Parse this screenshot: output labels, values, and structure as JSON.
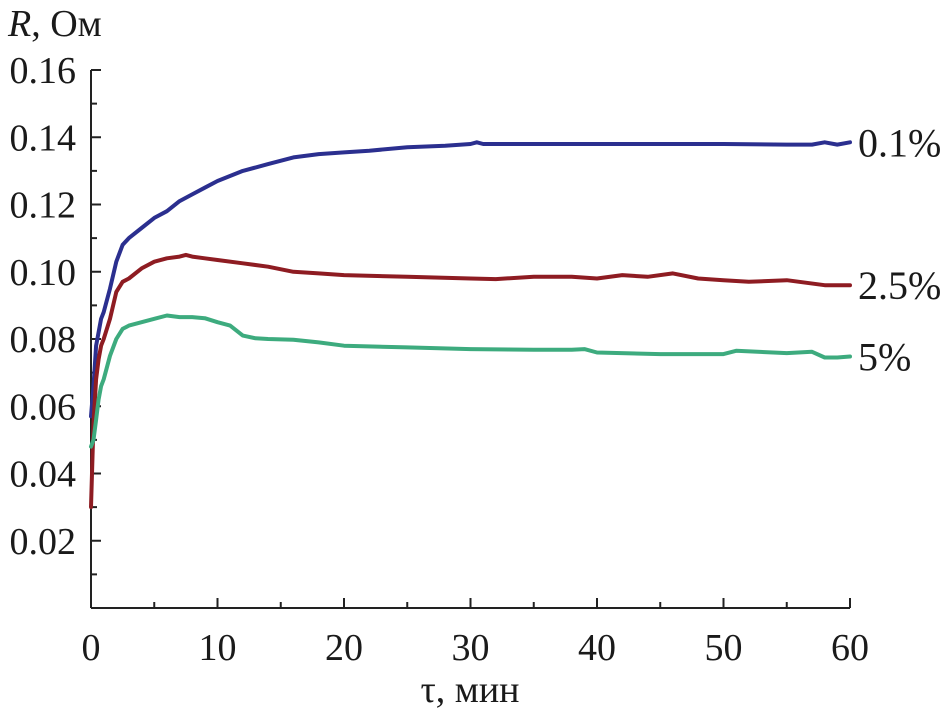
{
  "chart_data": {
    "type": "line",
    "title": "",
    "ylabel_var": "R",
    "ylabel_unit": ", Ом",
    "xlabel": "τ, мин",
    "xlim": [
      0,
      60
    ],
    "ylim": [
      0,
      0.16
    ],
    "x_ticks": [
      0,
      10,
      20,
      30,
      40,
      50,
      60
    ],
    "x_tick_labels": [
      "0",
      "10",
      "20",
      "30",
      "40",
      "50",
      "60"
    ],
    "y_ticks": [
      0.02,
      0.04,
      0.06,
      0.08,
      0.1,
      0.12,
      0.14,
      0.16
    ],
    "y_tick_labels": [
      "0.02",
      "0.04",
      "0.06",
      "0.08",
      "0.10",
      "0.12",
      "0.14",
      "0.16"
    ],
    "grid": false,
    "series": [
      {
        "name": "0.1%",
        "color": "#2b2f8f",
        "x": [
          0,
          0.2,
          0.4,
          0.6,
          0.8,
          1.0,
          1.5,
          2.0,
          2.5,
          3,
          4,
          5,
          6,
          7,
          8,
          9,
          10,
          12,
          14,
          16,
          18,
          20,
          22,
          25,
          28,
          30,
          30.5,
          31,
          32,
          35,
          40,
          45,
          50,
          55,
          57,
          58,
          59,
          60
        ],
        "y": [
          0.057,
          0.066,
          0.078,
          0.082,
          0.086,
          0.088,
          0.095,
          0.103,
          0.108,
          0.11,
          0.113,
          0.116,
          0.118,
          0.121,
          0.123,
          0.125,
          0.127,
          0.13,
          0.132,
          0.134,
          0.135,
          0.1355,
          0.136,
          0.137,
          0.1375,
          0.138,
          0.1385,
          0.138,
          0.138,
          0.138,
          0.138,
          0.138,
          0.138,
          0.1378,
          0.1378,
          0.1385,
          0.1378,
          0.1385
        ]
      },
      {
        "name": "2.5%",
        "color": "#8e1c22",
        "x": [
          0,
          0.2,
          0.4,
          0.6,
          0.8,
          1.0,
          1.5,
          2.0,
          2.5,
          3,
          4,
          5,
          6,
          7,
          7.5,
          8,
          9,
          10,
          12,
          14,
          16,
          18,
          20,
          25,
          30,
          32,
          35,
          38,
          40,
          42,
          44,
          46,
          48,
          50,
          52,
          55,
          58,
          60
        ],
        "y": [
          0.03,
          0.055,
          0.068,
          0.074,
          0.078,
          0.08,
          0.086,
          0.094,
          0.097,
          0.098,
          0.101,
          0.103,
          0.104,
          0.1045,
          0.105,
          0.1045,
          0.104,
          0.1035,
          0.1025,
          0.1015,
          0.1,
          0.0995,
          0.099,
          0.0985,
          0.098,
          0.0978,
          0.0985,
          0.0985,
          0.098,
          0.099,
          0.0985,
          0.0995,
          0.098,
          0.0975,
          0.097,
          0.0975,
          0.096,
          0.096
        ]
      },
      {
        "name": "5%",
        "color": "#3dab7e",
        "x": [
          0,
          0.2,
          0.4,
          0.6,
          0.8,
          1.0,
          1.5,
          2.0,
          2.5,
          3,
          4,
          5,
          6,
          7,
          8,
          9,
          10,
          11,
          12,
          13,
          14,
          16,
          18,
          20,
          25,
          30,
          35,
          38,
          39,
          40,
          45,
          50,
          51,
          55,
          57,
          58,
          59,
          60
        ],
        "y": [
          0.048,
          0.05,
          0.056,
          0.062,
          0.066,
          0.068,
          0.075,
          0.08,
          0.083,
          0.084,
          0.085,
          0.086,
          0.087,
          0.0865,
          0.0865,
          0.0862,
          0.085,
          0.084,
          0.081,
          0.0802,
          0.08,
          0.0798,
          0.079,
          0.078,
          0.0775,
          0.077,
          0.0768,
          0.0768,
          0.077,
          0.076,
          0.0755,
          0.0755,
          0.0765,
          0.0758,
          0.0762,
          0.0745,
          0.0745,
          0.0748
        ]
      }
    ]
  }
}
